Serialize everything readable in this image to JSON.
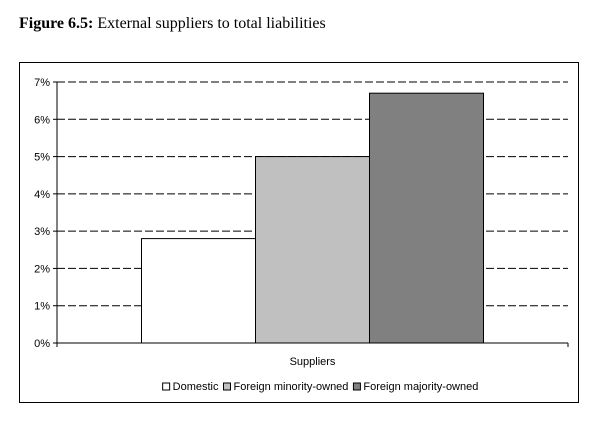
{
  "figure": {
    "number": "Figure 6.5:",
    "caption": "External suppliers to total liabilities"
  },
  "chart_data": {
    "type": "bar",
    "categories": [
      "Suppliers"
    ],
    "series": [
      {
        "name": "Domestic",
        "values": [
          2.8
        ],
        "color": "#ffffff"
      },
      {
        "name": "Foreign minority-owned",
        "values": [
          5.0
        ],
        "color": "#c0c0c0"
      },
      {
        "name": "Foreign majority-owned",
        "values": [
          6.7
        ],
        "color": "#808080"
      }
    ],
    "ylim": [
      0,
      7
    ],
    "yticks": [
      0,
      1,
      2,
      3,
      4,
      5,
      6,
      7
    ],
    "ytick_labels": [
      "0%",
      "1%",
      "2%",
      "3%",
      "4%",
      "5%",
      "6%",
      "7%"
    ],
    "grid": true,
    "legend": "bottom",
    "xlabel": "",
    "ylabel": "",
    "title": ""
  }
}
